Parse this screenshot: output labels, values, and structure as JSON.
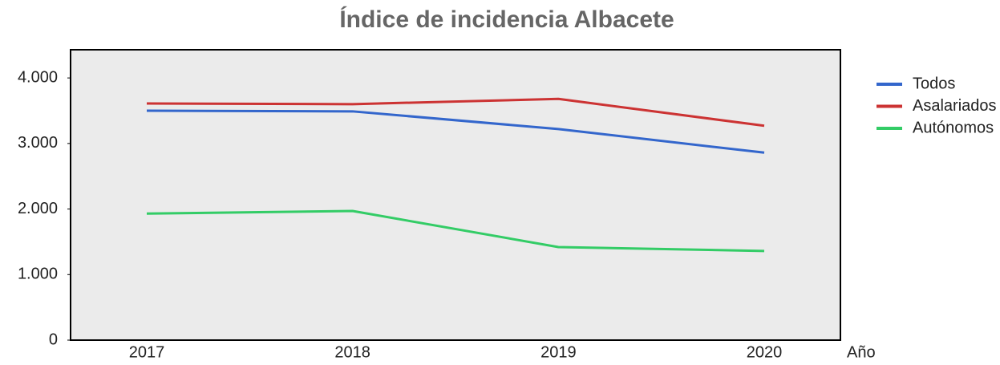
{
  "chart_data": {
    "type": "line",
    "title": "Índice de incidencia Albacete",
    "x_label": "Año",
    "categories": [
      "2017",
      "2018",
      "2019",
      "2020"
    ],
    "series": [
      {
        "name": "Todos",
        "color": "#3366cc",
        "values": [
          3500,
          3490,
          3220,
          2860
        ]
      },
      {
        "name": "Asalariados",
        "color": "#cc3333",
        "values": [
          3610,
          3600,
          3680,
          3270
        ]
      },
      {
        "name": "Autónomos",
        "color": "#33cc66",
        "values": [
          1930,
          1970,
          1420,
          1360
        ]
      }
    ],
    "ylim": [
      0,
      4430
    ],
    "yticks": [
      0,
      {
        "value": 1000,
        "label": "1.000"
      },
      {
        "value": 2000,
        "label": "2.000"
      },
      {
        "value": 3000,
        "label": "3.000"
      },
      {
        "value": 4000,
        "label": "4.000"
      }
    ],
    "grid": false,
    "legend": "right"
  }
}
